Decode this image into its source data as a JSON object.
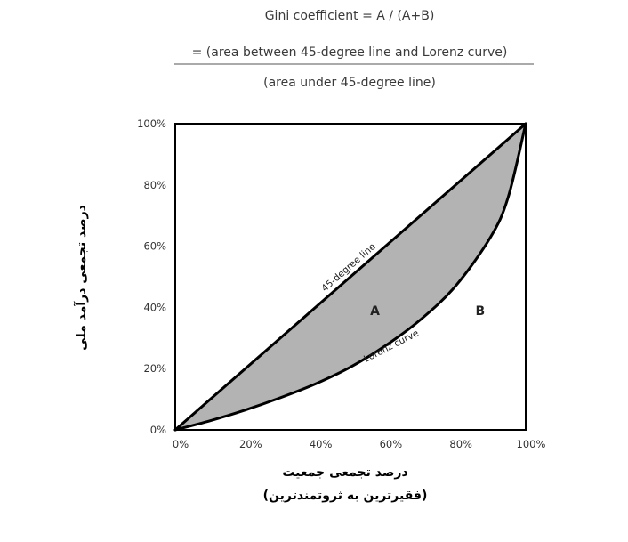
{
  "formula": {
    "line1": "Gini coefficient = A / (A+B)",
    "numerator": "= (area between 45-degree line and Lorenz curve)",
    "denominator": "(area under 45-degree line)"
  },
  "chart_data": {
    "type": "area",
    "x_ticks": [
      "0%",
      "20%",
      "40%",
      "60%",
      "80%",
      "100%"
    ],
    "y_ticks": [
      "0%",
      "20%",
      "40%",
      "60%",
      "80%",
      "100%"
    ],
    "xlim": [
      0,
      100
    ],
    "ylim": [
      0,
      100
    ],
    "xlabel_line1": "درصد تجمعی جمعیت",
    "xlabel_line2": "(فقیرترین به ثروتمندترین)",
    "ylabel": "درصد تجمعی درآمد ملی",
    "series": [
      {
        "name": "45-degree line",
        "x": [
          0,
          100
        ],
        "y": [
          0,
          100
        ]
      },
      {
        "name": "Lorenz curve",
        "x": [
          0,
          10,
          20,
          30,
          40,
          50,
          60,
          70,
          80,
          90,
          95,
          100
        ],
        "y": [
          0,
          3,
          6.5,
          10.5,
          15,
          20.5,
          27.5,
          36,
          47,
          63,
          76,
          100
        ]
      }
    ],
    "annotations": [
      "A",
      "B"
    ],
    "shaded_region": "A",
    "shade_color": "#b3b3b3",
    "line_color": "#000000"
  }
}
